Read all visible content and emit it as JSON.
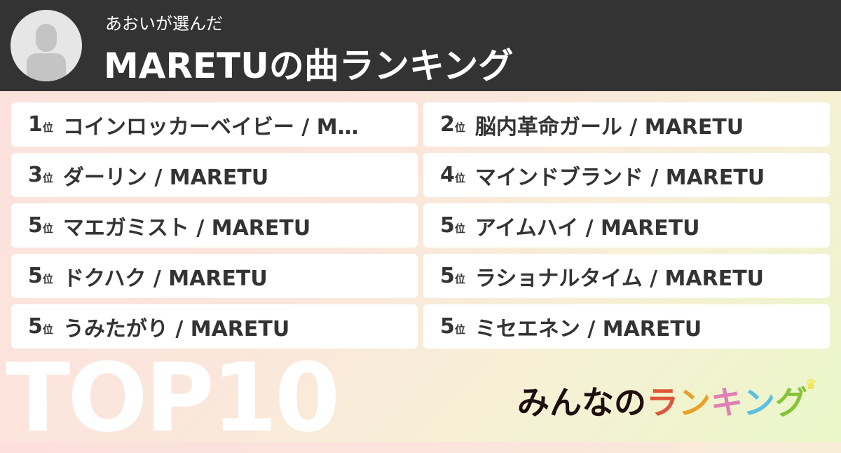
{
  "header": {
    "subtitle": "あおいが選んだ",
    "title": "MARETUの曲ランキング"
  },
  "rank_suffix": "位",
  "items": [
    {
      "rank": "1",
      "name": "コインロッカーベイビー / M…"
    },
    {
      "rank": "2",
      "name": "脳内革命ガール / MARETU"
    },
    {
      "rank": "3",
      "name": "ダーリン / MARETU"
    },
    {
      "rank": "4",
      "name": "マインドブランド / MARETU"
    },
    {
      "rank": "5",
      "name": "マエガミスト / MARETU"
    },
    {
      "rank": "5",
      "name": "アイムハイ / MARETU"
    },
    {
      "rank": "5",
      "name": "ドクハク / MARETU"
    },
    {
      "rank": "5",
      "name": "ラショナルタイム / MARETU"
    },
    {
      "rank": "5",
      "name": "うみたがり / MARETU"
    },
    {
      "rank": "5",
      "name": "ミセエネン / MARETU"
    }
  ],
  "badge": "TOP10",
  "logo": {
    "text": "みんなのランキング",
    "parts": [
      "みんなの",
      "ラ",
      "ン",
      "キ",
      "ン",
      "グ"
    ],
    "colors": [
      "#1e0e0e",
      "#e0553a",
      "#eba02a",
      "#e07fb4",
      "#5bbfe0",
      "#88c43a"
    ]
  }
}
